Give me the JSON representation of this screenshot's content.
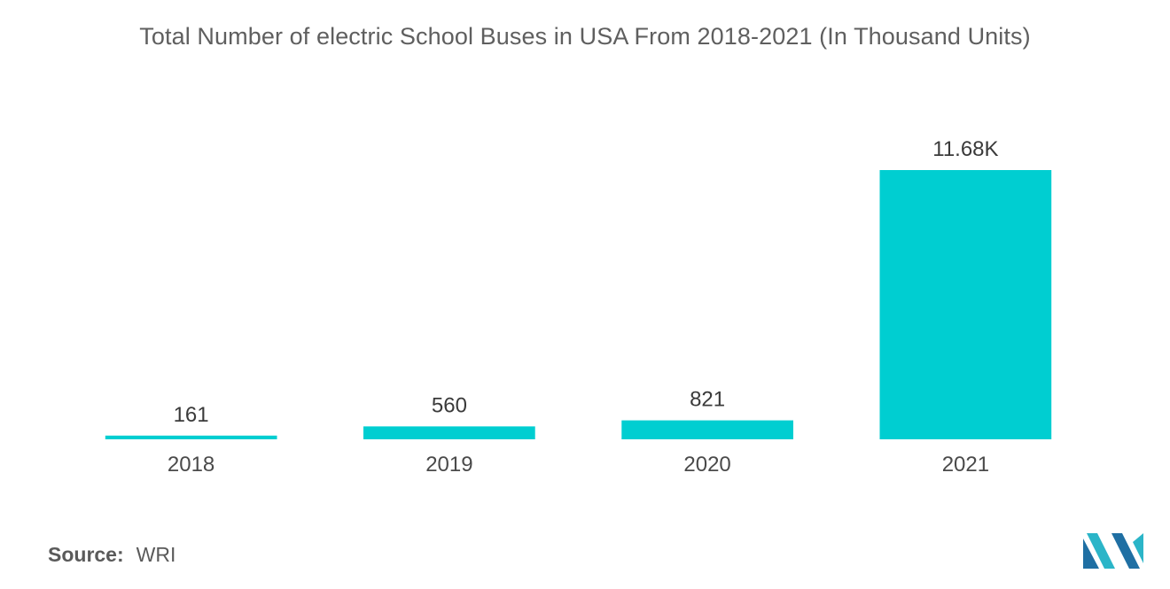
{
  "chart_data": {
    "type": "bar",
    "title": "Total Number of electric School Buses in USA From 2018-2021 (In Thousand Units)",
    "categories": [
      "2018",
      "2019",
      "2020",
      "2021"
    ],
    "values": [
      161,
      560,
      821,
      11680
    ],
    "value_labels": [
      "161",
      "560",
      "821",
      "11.68K"
    ],
    "xlabel": "",
    "ylabel": "",
    "ylim": [
      0,
      11680
    ],
    "grid": false,
    "legend": "none",
    "bar_color": "#00ced1"
  },
  "source": {
    "label": "Source:",
    "value": "WRI"
  },
  "brand": {
    "logo_icon": "mordor-intelligence-logo-icon",
    "color_dark": "#1f6fa3",
    "color_light": "#2bb5c8"
  }
}
